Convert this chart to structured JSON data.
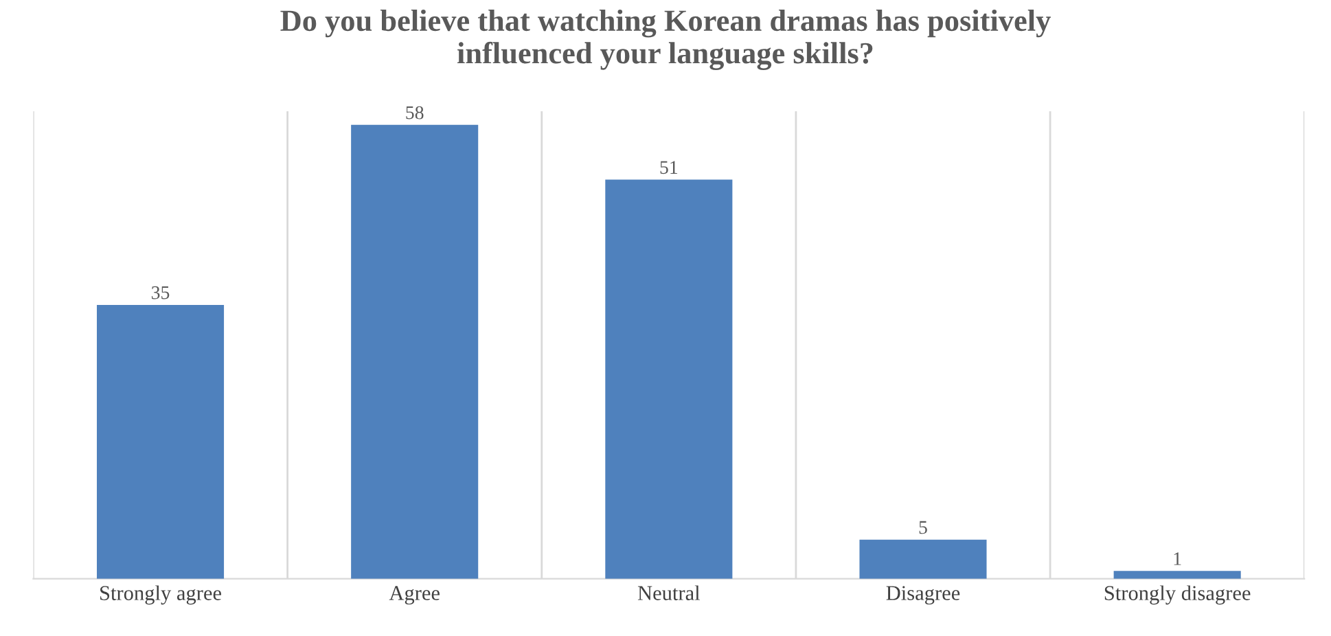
{
  "chart_data": {
    "type": "bar",
    "title": "Do you believe that watching Korean dramas has positively\ninfluenced your language skills?",
    "categories": [
      "Strongly agree",
      "Agree",
      "Neutral",
      "Disagree",
      "Strongly disagree"
    ],
    "values": [
      35,
      58,
      51,
      5,
      1
    ],
    "color": "#4f81bd",
    "data_labels": true,
    "grid": "x"
  }
}
